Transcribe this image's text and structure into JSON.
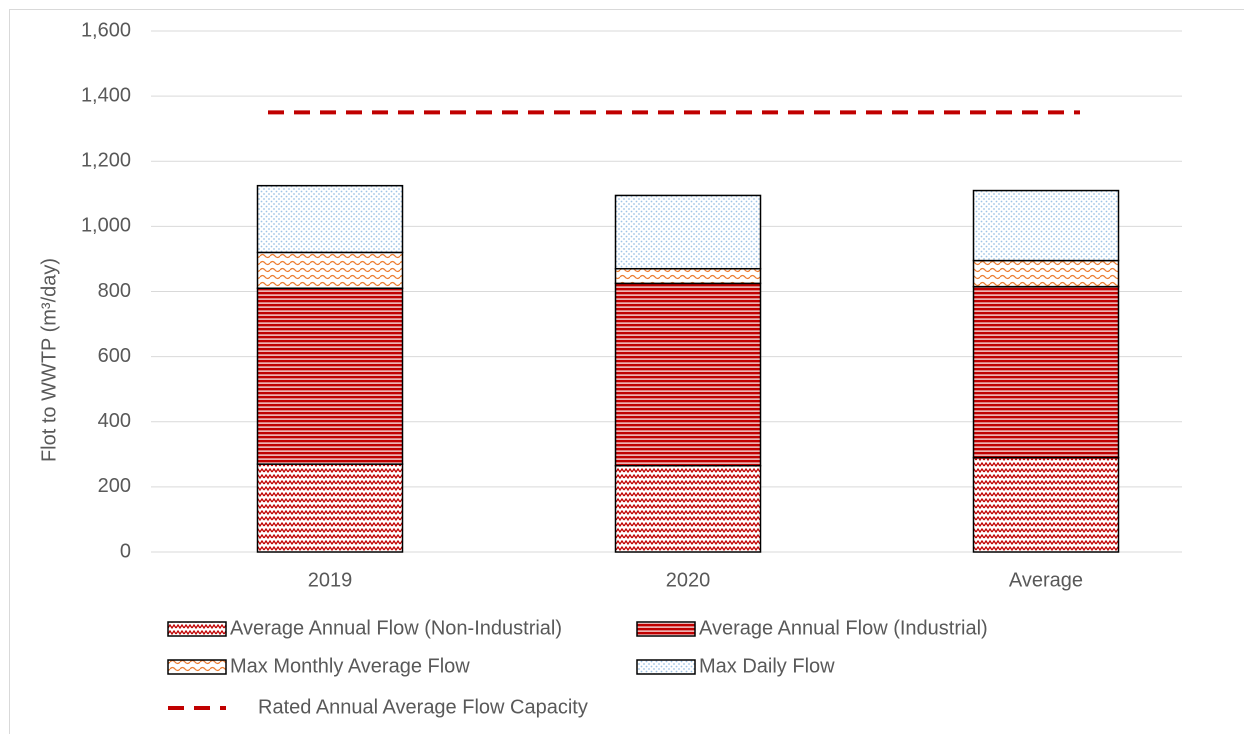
{
  "chart_data": {
    "type": "stacked-bar",
    "y_label": "Flot to WWTP (m³/day)",
    "categories": [
      "2019",
      "2020",
      "Average"
    ],
    "series": [
      {
        "name": "Average Annual Flow (Non-Industrial)",
        "color": "#c00000",
        "pattern": "zigzag",
        "values": [
          270,
          265,
          290
        ]
      },
      {
        "name": "Average Annual Flow (Industrial)",
        "color": "#c00000",
        "pattern": "horizontal",
        "values": [
          540,
          560,
          525
        ]
      },
      {
        "name": "Max Monthly Average Flow",
        "color": "#ed7d31",
        "pattern": "wave",
        "values": [
          110,
          45,
          80
        ]
      },
      {
        "name": "Max Daily Flow",
        "color": "#9dc3e6",
        "pattern": "dots",
        "values": [
          205,
          225,
          215
        ]
      }
    ],
    "lines": [
      {
        "name": "Rated Annual Average Flow Capacity",
        "color": "#c00000",
        "value": 1350
      }
    ],
    "ylim": [
      0,
      1600
    ],
    "yticks": [
      0,
      200,
      400,
      600,
      800,
      {
        "value": 1000,
        "label": "1,000"
      },
      {
        "value": 1200,
        "label": "1,200"
      },
      {
        "value": 1400,
        "label": "1,400"
      },
      {
        "value": 1600,
        "label": "1,600"
      }
    ],
    "grid": true
  }
}
